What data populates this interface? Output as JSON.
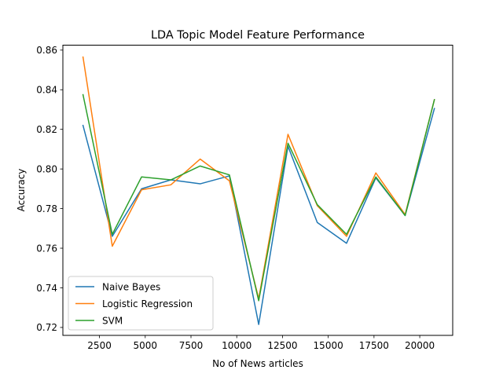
{
  "chart_data": {
    "type": "line",
    "title": "LDA Topic Model Feature Performance",
    "xlabel": "No of News articles",
    "ylabel": "Accuracy",
    "xlim": [
      500,
      21800
    ],
    "ylim": [
      0.716,
      0.8625
    ],
    "xticks": [
      2500,
      5000,
      7500,
      10000,
      12500,
      15000,
      17500,
      20000
    ],
    "yticks": [
      0.72,
      0.74,
      0.76,
      0.78,
      0.8,
      0.82,
      0.84,
      0.86
    ],
    "xtick_labels": [
      "2500",
      "5000",
      "7500",
      "10000",
      "12500",
      "15000",
      "17500",
      "20000"
    ],
    "ytick_labels": [
      "0.72",
      "0.74",
      "0.76",
      "0.78",
      "0.80",
      "0.82",
      "0.84",
      "0.86"
    ],
    "grid": false,
    "legend_position": "lower-left",
    "x": [
      1600,
      3200,
      4800,
      6400,
      8000,
      9600,
      11200,
      12800,
      14400,
      16000,
      17600,
      19200,
      20800
    ],
    "series": [
      {
        "name": "Naive Bayes",
        "color": "#1f77b4",
        "values": [
          0.822,
          0.766,
          0.79,
          0.7945,
          0.7925,
          0.7965,
          0.7215,
          0.8115,
          0.773,
          0.7625,
          0.7955,
          0.7765,
          0.8305
        ]
      },
      {
        "name": "Logistic Regression",
        "color": "#ff7f0e",
        "values": [
          0.8565,
          0.761,
          0.7895,
          0.792,
          0.805,
          0.794,
          0.7345,
          0.8175,
          0.7815,
          0.766,
          0.798,
          0.777,
          0.835
        ]
      },
      {
        "name": "SVM",
        "color": "#2ca02c",
        "values": [
          0.8375,
          0.767,
          0.796,
          0.7945,
          0.8015,
          0.797,
          0.7335,
          0.813,
          0.782,
          0.767,
          0.796,
          0.7765,
          0.835
        ]
      }
    ]
  }
}
